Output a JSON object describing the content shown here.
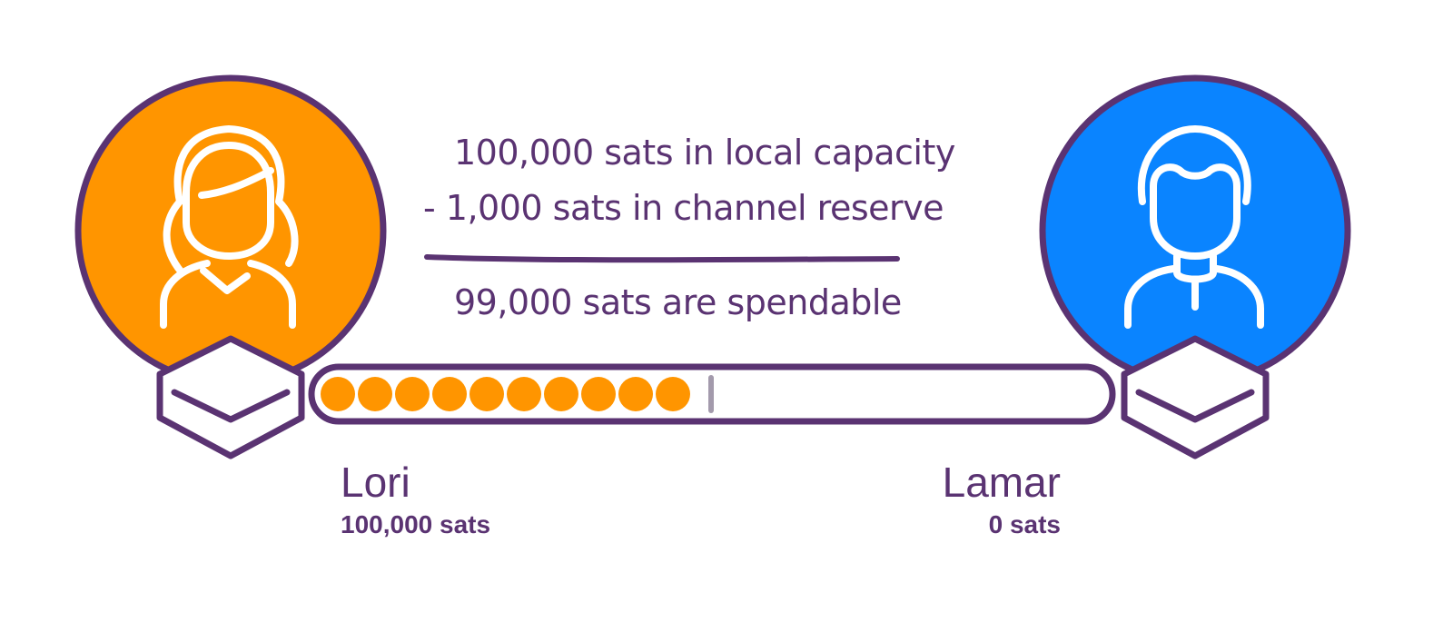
{
  "colors": {
    "outline": "#5a3372",
    "local_avatar": "#ff9500",
    "remote_avatar": "#0a84ff",
    "token": "#ff9500",
    "reserve_marker": "#a39aac",
    "icon_stroke": "#ffffff"
  },
  "calculation": {
    "line1": "100,000 sats in local capacity",
    "line2": "- 1,000 sats in channel reserve",
    "result": "99,000 sats are spendable"
  },
  "local_node": {
    "name": "Lori",
    "balance": "100,000 sats",
    "avatar_icon": "female-user-icon",
    "node_icon": "node-hexagon-icon"
  },
  "remote_node": {
    "name": "Lamar",
    "balance": "0 sats",
    "avatar_icon": "male-user-icon",
    "node_icon": "node-hexagon-icon"
  },
  "channel": {
    "local_tokens": 10,
    "reserve_marker": true
  }
}
